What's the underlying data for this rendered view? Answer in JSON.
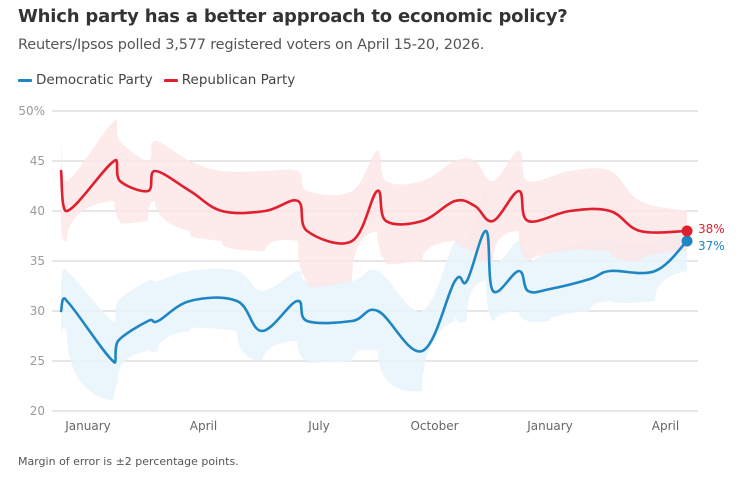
{
  "header": {
    "title": "Which party has a better approach to economic policy?",
    "subtitle": "Reuters/Ipsos polled 3,577 registered voters on April 15-20, 2026."
  },
  "footnote": "Margin of error is ±2 percentage points.",
  "colors": {
    "democratic": "#1f86c4",
    "democratic_band": "#e8f3fb",
    "republican": "#e0202f",
    "republican_band": "#fde6e8",
    "grid": "#cccccc"
  },
  "chart_data": {
    "type": "line",
    "title": "Which party has a better approach to economic policy?",
    "subtitle": "Reuters/Ipsos polled 3,577 registered voters on April 15-20, 2026.",
    "xlabel": "",
    "ylabel": "",
    "x_units": "months since January of first year",
    "xlim": [
      -0.7,
      15.56
    ],
    "ylim": [
      20,
      50
    ],
    "y_ticks": [
      {
        "value": 50,
        "label": "50%"
      },
      {
        "value": 45,
        "label": "45"
      },
      {
        "value": 40,
        "label": "40"
      },
      {
        "value": 35,
        "label": "35"
      },
      {
        "value": 30,
        "label": "30"
      },
      {
        "value": 25,
        "label": "25"
      },
      {
        "value": 20,
        "label": "20"
      }
    ],
    "x_ticks": [
      {
        "value": 0,
        "label": "January"
      },
      {
        "value": 3,
        "label": "April"
      },
      {
        "value": 6,
        "label": "July"
      },
      {
        "value": 9,
        "label": "October"
      },
      {
        "value": 12,
        "label": "January"
      },
      {
        "value": 15,
        "label": "April"
      }
    ],
    "grid": true,
    "legend_position": "top-left",
    "series": [
      {
        "name": "Democratic Party",
        "key": "democratic",
        "end_label": "37%",
        "x": [
          -0.7,
          -0.55,
          0.65,
          0.78,
          1.56,
          1.82,
          2.65,
          3.87,
          4.52,
          5.43,
          5.69,
          6.86,
          7.53,
          8.68,
          9.53,
          9.84,
          10.34,
          10.52,
          11.19,
          11.43,
          12.0,
          13.04,
          13.56,
          14.73,
          15.56
        ],
        "values": [
          30,
          31,
          25,
          27,
          29,
          29,
          31,
          31,
          28,
          31,
          29,
          29,
          30,
          26,
          33,
          33,
          38,
          32,
          34,
          32,
          32.2,
          33.2,
          34,
          34,
          37
        ],
        "low": [
          27,
          28,
          21,
          23,
          26,
          26,
          28,
          28,
          25,
          27,
          25,
          25,
          26,
          22,
          29,
          29,
          33,
          29,
          30,
          29,
          29,
          30,
          31,
          31,
          34
        ],
        "high": [
          33,
          34,
          29,
          31,
          33,
          33,
          34,
          34,
          32,
          34,
          33,
          33,
          34,
          30,
          37,
          37,
          42,
          35,
          37,
          35,
          36,
          37,
          37,
          37,
          39
        ]
      },
      {
        "name": "Republican Party",
        "key": "republican",
        "end_label": "38%",
        "x": [
          -0.7,
          -0.55,
          0.68,
          0.83,
          1.56,
          1.74,
          2.65,
          3.48,
          4.6,
          5.45,
          5.69,
          6.86,
          7.51,
          7.74,
          8.68,
          9.53,
          10.05,
          10.52,
          11.19,
          11.43,
          12.52,
          13.56,
          14.34,
          15.56
        ],
        "values": [
          44,
          40,
          45,
          43,
          42,
          44,
          42,
          40,
          40,
          41,
          38,
          37,
          42,
          39,
          39,
          41,
          40.5,
          39,
          42,
          39,
          40,
          40,
          38,
          38
        ],
        "low": [
          39,
          37,
          41,
          39,
          39,
          41,
          38,
          37,
          36,
          37,
          33,
          33,
          38,
          35,
          35,
          37,
          36,
          35,
          38,
          35,
          36,
          36,
          35,
          36
        ],
        "high": [
          47,
          43,
          49,
          47,
          45,
          47,
          45,
          44,
          44,
          44,
          42,
          42,
          46,
          43,
          43,
          45,
          45,
          43,
          46,
          43,
          44,
          44,
          41,
          40
        ]
      }
    ]
  }
}
